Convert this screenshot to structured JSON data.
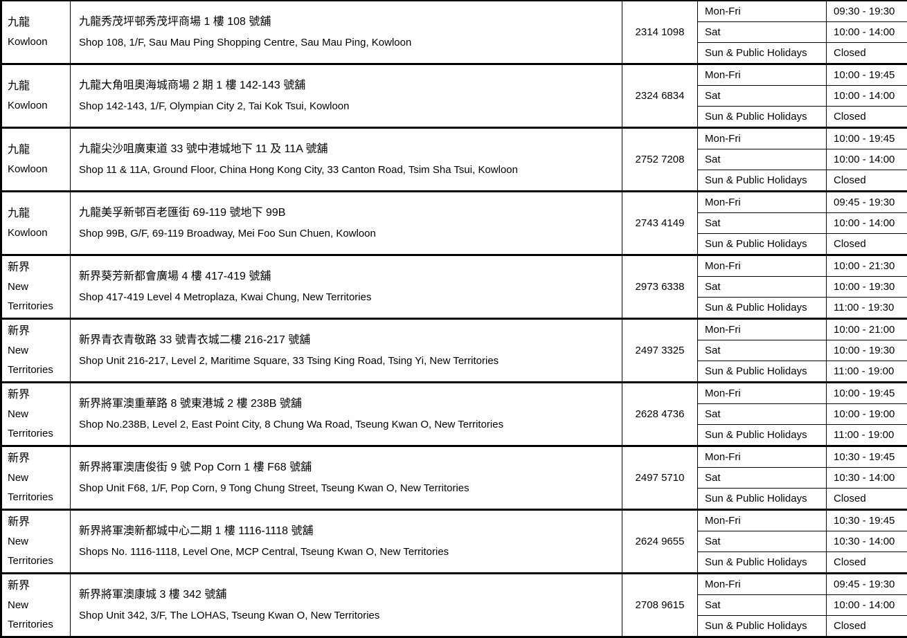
{
  "table": {
    "description": "Branch address and opening hours table",
    "day_labels": [
      "Mon-Fri",
      "Sat",
      "Sun & Public Holidays"
    ],
    "rows": [
      {
        "region_zh": "九龍",
        "region_en": "Kowloon",
        "address_zh": "九龍秀茂坪邨秀茂坪商場 1 樓 108 號舖",
        "address_en": "Shop 108, 1/F, Sau Mau Ping Shopping Centre, Sau Mau Ping, Kowloon",
        "phone": "2314 1098",
        "hours": [
          {
            "day": "Mon-Fri",
            "time": "09:30 - 19:30"
          },
          {
            "day": "Sat",
            "time": "10:00 - 14:00"
          },
          {
            "day": "Sun & Public Holidays",
            "time": "Closed"
          }
        ]
      },
      {
        "region_zh": "九龍",
        "region_en": "Kowloon",
        "address_zh": "九龍大角咀奧海城商場 2 期 1 樓 142-143 號舖",
        "address_en": "Shop 142-143, 1/F, Olympian City 2, Tai Kok Tsui, Kowloon",
        "phone": "2324 6834",
        "hours": [
          {
            "day": "Mon-Fri",
            "time": "10:00 - 19:45"
          },
          {
            "day": "Sat",
            "time": "10:00 - 14:00"
          },
          {
            "day": "Sun & Public Holidays",
            "time": "Closed"
          }
        ]
      },
      {
        "region_zh": "九龍",
        "region_en": "Kowloon",
        "address_zh": "九龍尖沙咀廣東道 33 號中港城地下 11 及 11A 號舖",
        "address_en": "Shop 11 & 11A, Ground Floor, China Hong Kong City, 33 Canton Road, Tsim Sha Tsui, Kowloon",
        "phone": "2752 7208",
        "hours": [
          {
            "day": "Mon-Fri",
            "time": "10:00 - 19:45"
          },
          {
            "day": "Sat",
            "time": "10:00 - 14:00"
          },
          {
            "day": "Sun & Public Holidays",
            "time": "Closed"
          }
        ]
      },
      {
        "region_zh": "九龍",
        "region_en": "Kowloon",
        "address_zh": "九龍美孚新邨百老匯街 69-119 號地下 99B",
        "address_en": "Shop 99B, G/F, 69-119 Broadway, Mei Foo Sun Chuen, Kowloon",
        "phone": "2743 4149",
        "hours": [
          {
            "day": "Mon-Fri",
            "time": "09:45 - 19:30"
          },
          {
            "day": "Sat",
            "time": "10:00 - 14:00"
          },
          {
            "day": "Sun & Public Holidays",
            "time": "Closed"
          }
        ]
      },
      {
        "region_zh": "新界",
        "region_en": "New Territories",
        "address_zh": "新界葵芳新都會廣場 4 樓 417-419 號舖",
        "address_en": "Shop 417-419 Level 4 Metroplaza, Kwai Chung, New Territories",
        "phone": "2973 6338",
        "hours": [
          {
            "day": "Mon-Fri",
            "time": "10:00 - 21:30"
          },
          {
            "day": "Sat",
            "time": "10:00 - 19:30"
          },
          {
            "day": "Sun & Public Holidays",
            "time": "11:00 - 19:30"
          }
        ]
      },
      {
        "region_zh": "新界",
        "region_en": "New Territories",
        "address_zh": "新界青衣青敬路 33 號青衣城二樓 216-217 號舖",
        "address_en": "Shop Unit 216-217, Level 2, Maritime Square, 33 Tsing King Road, Tsing Yi, New Territories",
        "phone": "2497 3325",
        "hours": [
          {
            "day": "Mon-Fri",
            "time": "10:00 - 21:00"
          },
          {
            "day": "Sat",
            "time": "10:00 - 19:30"
          },
          {
            "day": "Sun & Public Holidays",
            "time": "11:00 - 19:00"
          }
        ]
      },
      {
        "region_zh": "新界",
        "region_en": "New Territories",
        "address_zh": "新界將軍澳重華路 8 號東港城 2 樓 238B 號舖",
        "address_en": "Shop No.238B, Level 2, East Point City, 8 Chung Wa Road, Tseung Kwan O, New Territories",
        "phone": "2628 4736",
        "hours": [
          {
            "day": "Mon-Fri",
            "time": "10:00 - 19:45"
          },
          {
            "day": "Sat",
            "time": "10:00 - 19:00"
          },
          {
            "day": "Sun & Public Holidays",
            "time": "11:00 - 19:00"
          }
        ]
      },
      {
        "region_zh": "新界",
        "region_en": "New Territories",
        "address_zh": "新界將軍澳唐俊街 9 號 Pop Corn 1 樓 F68 號舖",
        "address_en": "Shop Unit F68, 1/F, Pop Corn, 9 Tong Chung Street, Tseung Kwan O, New Territories",
        "phone": "2497 5710",
        "hours": [
          {
            "day": "Mon-Fri",
            "time": "10:30 - 19:45"
          },
          {
            "day": "Sat",
            "time": "10:30 - 14:00"
          },
          {
            "day": "Sun & Public Holidays",
            "time": "Closed"
          }
        ]
      },
      {
        "region_zh": "新界",
        "region_en": "New Territories",
        "address_zh": "新界將軍澳新都城中心二期 1 樓 1116-1118 號舖",
        "address_en": "Shops No. 1116-1118, Level One, MCP Central, Tseung Kwan O, New Territories",
        "phone": "2624 9655",
        "hours": [
          {
            "day": "Mon-Fri",
            "time": "10:30 - 19:45"
          },
          {
            "day": "Sat",
            "time": "10:30 - 14:00"
          },
          {
            "day": "Sun & Public Holidays",
            "time": "Closed"
          }
        ]
      },
      {
        "region_zh": "新界",
        "region_en": "New Territories",
        "address_zh": "新界將軍澳康城 3 樓 342 號舖",
        "address_en": "Shop Unit 342, 3/F, The LOHAS, Tseung Kwan O, New Territories",
        "phone": "2708 9615",
        "hours": [
          {
            "day": "Mon-Fri",
            "time": "09:45 - 19:30"
          },
          {
            "day": "Sat",
            "time": "10:00 - 14:00"
          },
          {
            "day": "Sun & Public Holidays",
            "time": "Closed"
          }
        ]
      }
    ]
  }
}
